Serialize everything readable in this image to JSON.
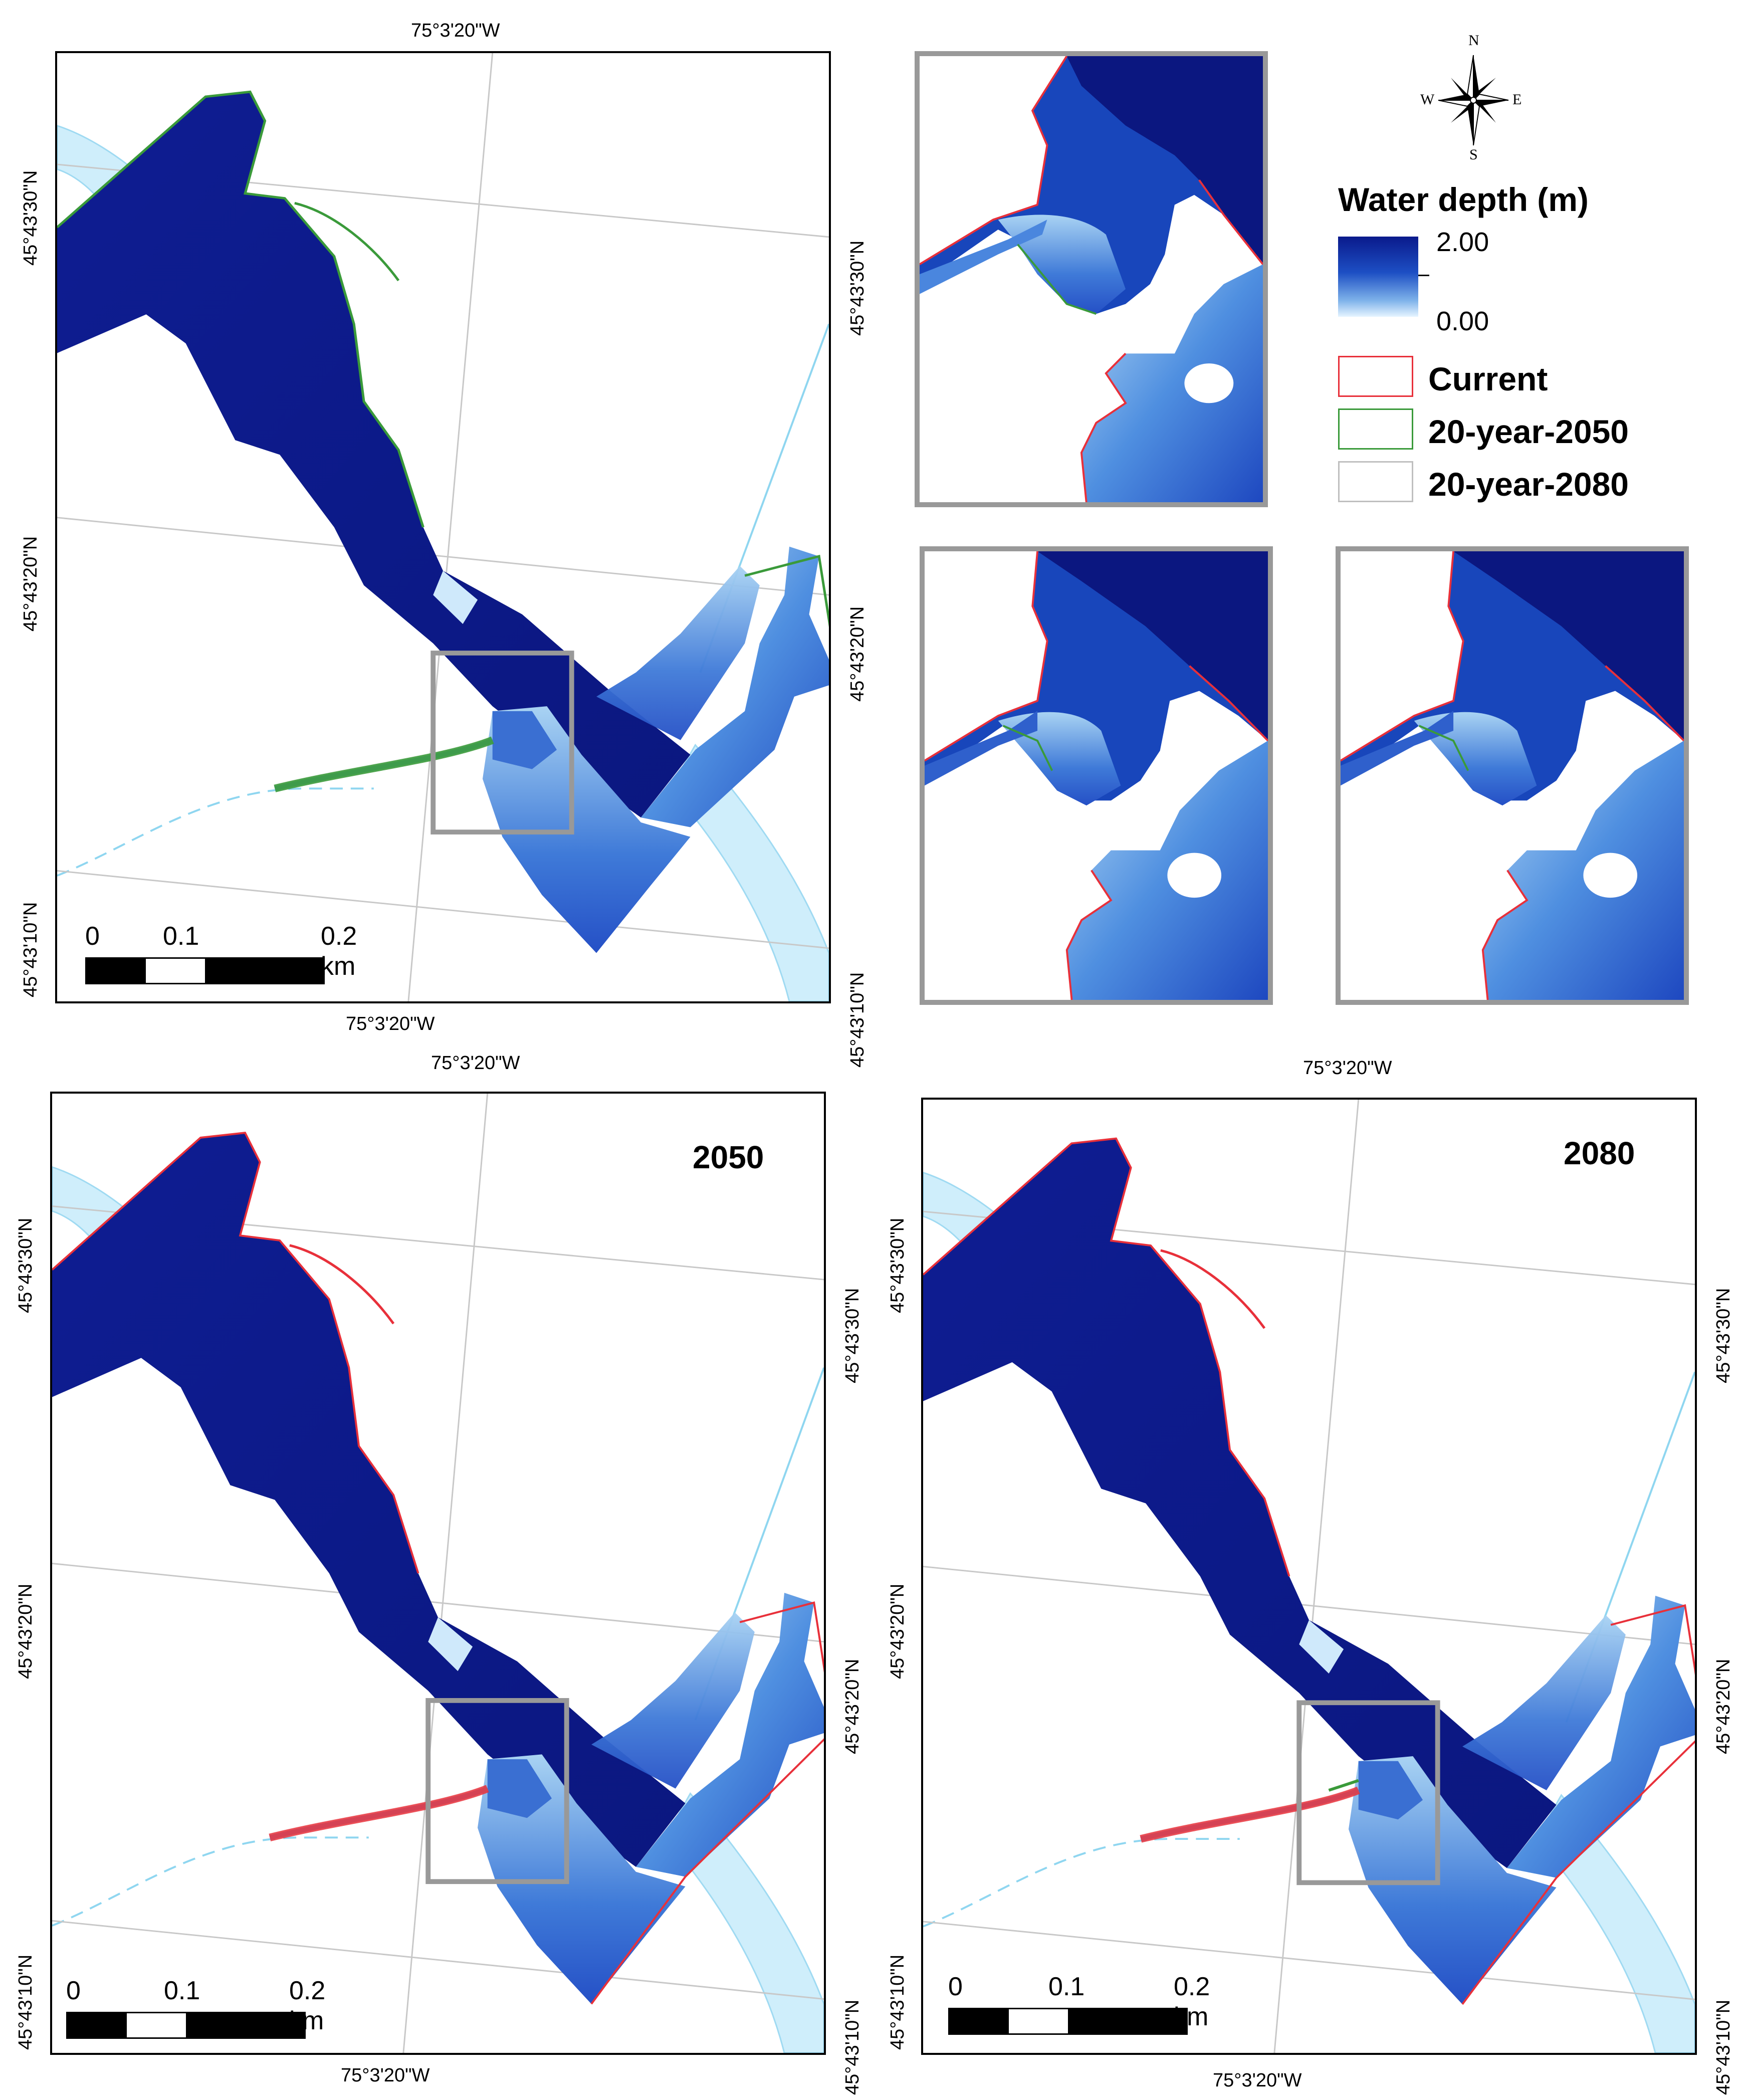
{
  "legend": {
    "title": "Water depth (m)",
    "ramp_max": "2.00",
    "ramp_min": "0.00",
    "items": [
      {
        "label": "Current",
        "color": "#e8303a"
      },
      {
        "label": "20-year-2050",
        "color": "#3a9a3a"
      },
      {
        "label": "20-year-2080",
        "color": "#bfbfbf"
      }
    ]
  },
  "compass": {
    "n": "N",
    "s": "S",
    "e": "E",
    "w": "W"
  },
  "colors": {
    "deep": "#0d1a8f",
    "mid": "#2a5fd0",
    "shallow": "#8fc2ef",
    "river": "#cfeefb",
    "frame_gray": "#999999"
  },
  "maps": {
    "top_left": {
      "lon_top": "75°3'20\"W",
      "lon_bottom": "75°3'20\"W",
      "lat_left_1": "45°43'30\"N",
      "lat_left_2": "45°43'20\"N",
      "lat_left_3": "45°43'10\"N",
      "lat_right_1": "45°43'30\"N",
      "lat_right_2": "45°43'20\"N",
      "lat_right_3": "45°43'10\"N"
    },
    "bottom_left": {
      "year": "2050",
      "lon_top": "75°3'20\"W",
      "lon_bottom": "75°3'20\"W",
      "lat_left_1": "45°43'30\"N",
      "lat_left_2": "45°43'20\"N",
      "lat_left_3": "45°43'10\"N",
      "lat_right_1": "45°43'30\"N",
      "lat_right_2": "45°43'20\"N",
      "lat_right_3": "45°43'10\"N"
    },
    "bottom_right": {
      "year": "2080",
      "lon_top": "75°3'20\"W",
      "lon_bottom": "75°3'20\"W",
      "lat_left_1": "45°43'30\"N",
      "lat_left_2": "45°43'20\"N",
      "lat_left_3": "45°43'10\"N",
      "lat_right_1": "45°43'30\"N",
      "lat_right_2": "45°43'20\"N",
      "lat_right_3": "45°43'10\"N"
    }
  },
  "scalebar": {
    "t0": "0",
    "t1": "0.1",
    "t2": "0.2 km"
  }
}
